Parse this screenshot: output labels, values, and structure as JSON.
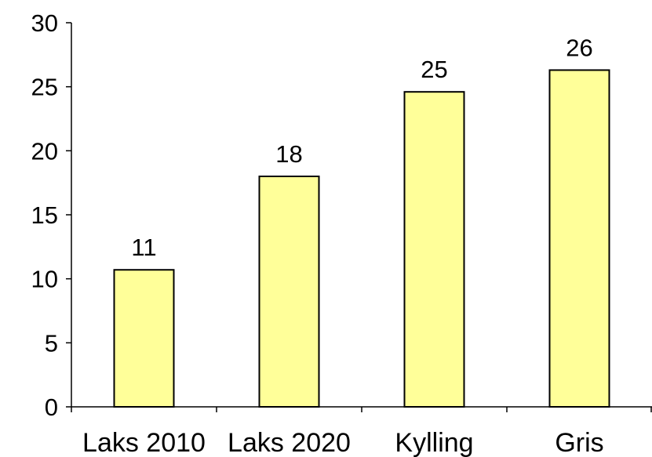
{
  "chart_data": {
    "type": "bar",
    "categories": [
      "Laks 2010",
      "Laks 2020",
      "Kylling",
      "Gris"
    ],
    "values": [
      10.7,
      18.0,
      24.6,
      26.3
    ],
    "data_labels": [
      "11",
      "18",
      "25",
      "26"
    ],
    "title": "",
    "xlabel": "",
    "ylabel": "",
    "ylim": [
      0,
      30
    ],
    "yticks": [
      0,
      5,
      10,
      15,
      20,
      25,
      30
    ],
    "ytick_labels": [
      "0",
      "5",
      "10",
      "15",
      "20",
      "25",
      "30"
    ],
    "grid": false,
    "legend": "none"
  },
  "colors": {
    "bar_fill": "#FFFF99",
    "bar_stroke": "#000000",
    "axis": "#000000",
    "text": "#000000"
  }
}
